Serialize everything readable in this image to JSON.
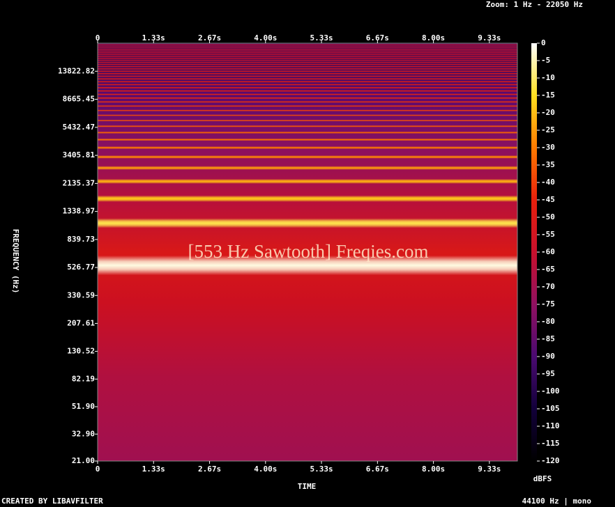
{
  "chart_data": {
    "type": "spectrogram",
    "zoom_label": "Zoom: 1 Hz - 22050 Hz",
    "xlabel": "TIME",
    "ylabel": "FREQUENCY (Hz)",
    "colorbar_label": "dBFS",
    "annotation": "[553 Hz Sawtooth] Freqies.com",
    "footer_left": "CREATED BY LIBAVFILTER",
    "footer_right": "44100 Hz | mono",
    "xlim": [
      0,
      10
    ],
    "xticks": [
      0,
      {
        "value": 1.333,
        "label": "1.33s"
      },
      {
        "value": 2.667,
        "label": "2.67s"
      },
      {
        "value": 4,
        "label": "4.00s"
      },
      {
        "value": 5.333,
        "label": "5.33s"
      },
      {
        "value": 6.667,
        "label": "6.67s"
      },
      {
        "value": 8,
        "label": "8.00s"
      },
      {
        "value": 9.333,
        "label": "9.33s"
      }
    ],
    "yscale": "log",
    "ylim": [
      21,
      22050
    ],
    "yticks": [
      {
        "value": 21,
        "label": "21.00"
      },
      {
        "value": 32.9,
        "label": "32.90"
      },
      {
        "value": 51.9,
        "label": "51.90"
      },
      {
        "value": 82.19,
        "label": "82.19"
      },
      {
        "value": 130.52,
        "label": "130.52"
      },
      {
        "value": 207.61,
        "label": "207.61"
      },
      {
        "value": 330.59,
        "label": "330.59"
      },
      526.77,
      {
        "value": 839.73,
        "label": "839.73"
      },
      1338.97,
      2135.37,
      3405.81,
      5432.47,
      8665.45,
      13822.82
    ],
    "clim": [
      -120,
      0
    ],
    "cticks": [
      0,
      -5,
      -10,
      -15,
      -20,
      -25,
      -30,
      -35,
      -40,
      -45,
      -50,
      -55,
      -60,
      -65,
      -70,
      -75,
      -80,
      -85,
      -90,
      -95,
      -100,
      -105,
      -110,
      -115,
      -120
    ],
    "colormap": [
      "#000000",
      "#12003a",
      "#4a0a70",
      "#901060",
      "#c8102c",
      "#e8200c",
      "#ff7a00",
      "#ffe020",
      "#ffffff"
    ],
    "harmonics": {
      "frequency": [
        553,
        1106,
        1659,
        2212,
        2765,
        3318,
        3871,
        4424,
        4977,
        5530,
        6083,
        6636,
        7189,
        7742,
        8295,
        8848,
        9401,
        9954,
        10507,
        11060,
        11613,
        12166,
        12719,
        13272,
        13825,
        14378,
        14931,
        15484,
        16037,
        16590,
        17143,
        17696,
        18249,
        18802,
        19355,
        19908,
        20461,
        21014,
        21567
      ],
      "level": [
        -2,
        -12,
        -18,
        -22,
        -25,
        -28,
        -30,
        -32,
        -34,
        -36,
        -37,
        -38,
        -40,
        -41,
        -42,
        -43,
        -44,
        -45,
        -46,
        -47,
        -48,
        -49,
        -50,
        -51,
        -52,
        -53,
        -54,
        -55,
        -56,
        -57,
        -58,
        -59,
        -60,
        -61,
        -62,
        -63,
        -64,
        -65,
        -66
      ]
    }
  }
}
